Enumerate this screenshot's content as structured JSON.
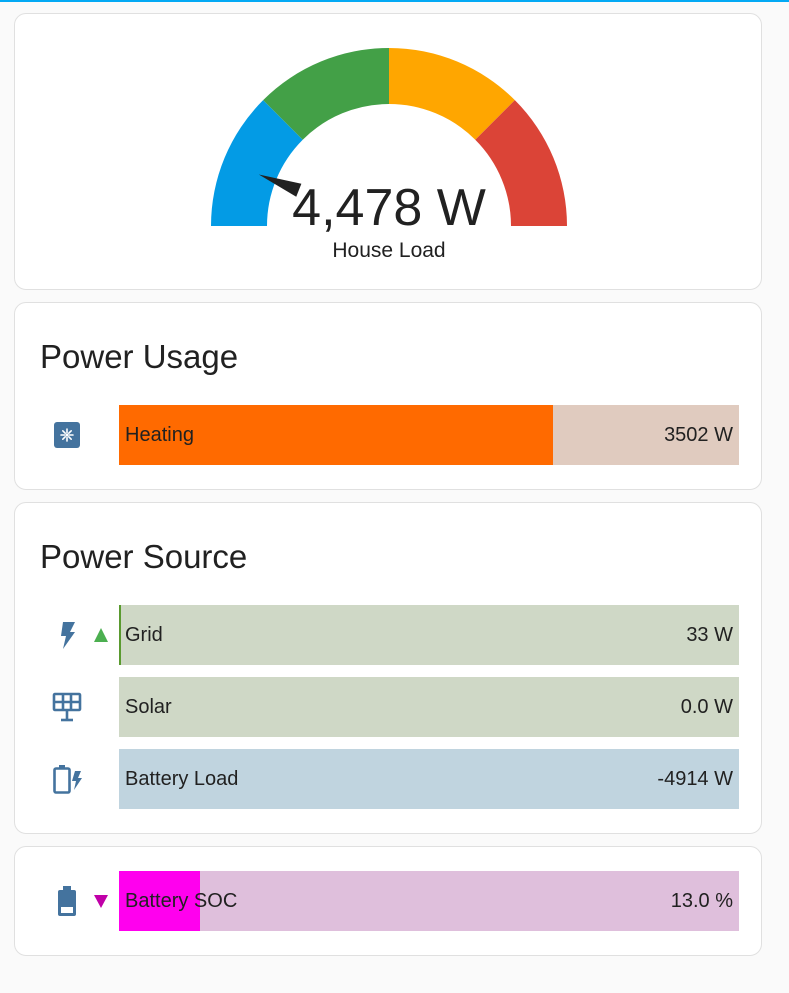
{
  "gauge": {
    "value": "4,478 W",
    "label": "House Load",
    "level": 0.12,
    "colors": {
      "low": "#039be5",
      "normal": "#43a047",
      "high": "#ffa600",
      "critical": "#db4437",
      "needle": "#212121"
    }
  },
  "power_usage": {
    "title": "Power Usage",
    "items": [
      {
        "label": "Heating",
        "value": "3502 W",
        "fraction": 0.7,
        "icon": "heat-pump-icon",
        "fill_color": "#ff6a00",
        "track_color": "#e0cbbf"
      }
    ]
  },
  "power_source": {
    "title": "Power Source",
    "items": [
      {
        "label": "Grid",
        "value": "33 W",
        "fraction": 0.003,
        "icon": "transmission-tower-icon",
        "trend": "up",
        "fill_color": "#5a9a2f",
        "track_color": "#cfd8c6"
      },
      {
        "label": "Solar",
        "value": "0.0 W",
        "fraction": 0,
        "icon": "solar-panel-icon",
        "fill_color": "#5a9a2f",
        "track_color": "#cfd8c6"
      },
      {
        "label": "Battery Load",
        "value": "-4914 W",
        "fraction": 0,
        "icon": "battery-charging-icon",
        "fill_color": "#039be5",
        "track_color": "#c0d4df"
      }
    ]
  },
  "battery_soc": {
    "items": [
      {
        "label": "Battery SOC",
        "value": "13.0 %",
        "fraction": 0.13,
        "icon": "battery-icon",
        "trend": "down",
        "fill_color": "#ff00ee",
        "track_color": "#dfbfdc"
      }
    ]
  },
  "colors": {
    "icon": "#44739e",
    "trend_up": "#4caf50",
    "trend_down": "#c000a8"
  }
}
